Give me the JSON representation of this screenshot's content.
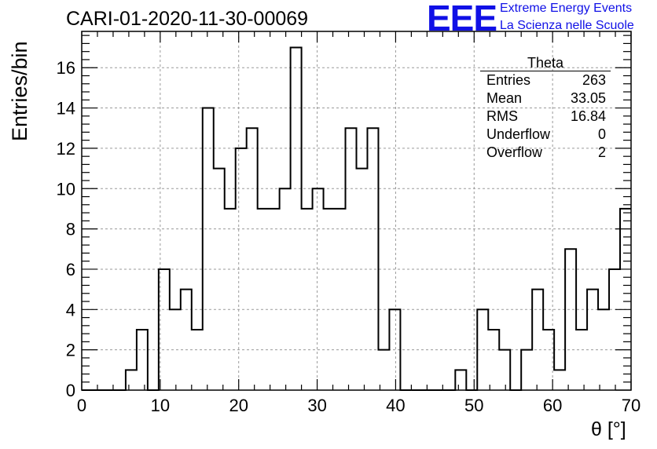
{
  "header": {
    "run_title": "CARI-01-2020-11-30-00069",
    "logo_text": "EEE",
    "brand_line1": "Extreme Energy Events",
    "brand_line2": "La Scienza nelle Scuole",
    "brand_color": "#1010e6"
  },
  "stats": {
    "name": "Theta",
    "rows": [
      {
        "label": "Entries",
        "value": "263"
      },
      {
        "label": "Mean",
        "value": "33.05"
      },
      {
        "label": "RMS",
        "value": "16.84"
      },
      {
        "label": "Underflow",
        "value": "0"
      },
      {
        "label": "Overflow",
        "value": "2"
      }
    ]
  },
  "chart_data": {
    "type": "bar",
    "subtype": "step-histogram",
    "title": "CARI-01-2020-11-30-00069",
    "xlabel": "θ [°]",
    "ylabel": "Entries/bin",
    "xlim": [
      0,
      70
    ],
    "ylim": [
      0,
      17.8
    ],
    "bin_width": 1.4,
    "x_ticks": [
      0,
      10,
      20,
      30,
      40,
      50,
      60,
      70
    ],
    "y_ticks": [
      0,
      2,
      4,
      6,
      8,
      10,
      12,
      14,
      16
    ],
    "grid": true,
    "legend": "top-right stats box",
    "values": [
      0,
      0,
      0,
      0,
      1,
      3,
      0,
      6,
      4,
      5,
      3,
      14,
      11,
      9,
      12,
      13,
      9,
      9,
      10,
      17,
      9,
      10,
      9,
      9,
      13,
      11,
      13,
      2,
      4,
      0,
      0,
      0,
      0,
      0,
      1,
      0,
      4,
      3,
      2,
      0,
      2,
      5,
      3,
      1,
      7,
      3,
      5,
      4,
      6,
      9
    ]
  }
}
